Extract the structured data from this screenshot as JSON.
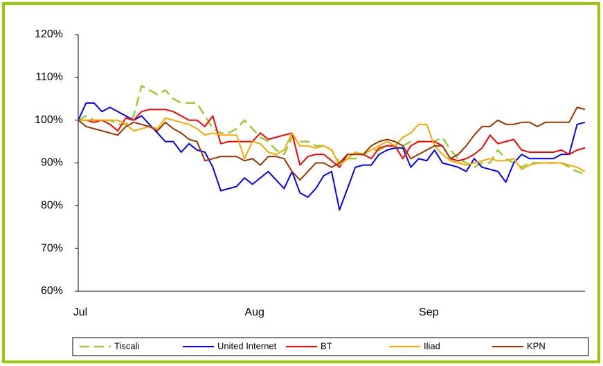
{
  "chart_data": {
    "type": "line",
    "categories": [
      "Jul",
      null,
      null,
      null,
      null,
      null,
      null,
      null,
      null,
      null,
      null,
      null,
      null,
      null,
      null,
      null,
      null,
      null,
      null,
      null,
      null,
      null,
      "Aug",
      null,
      null,
      null,
      null,
      null,
      null,
      null,
      null,
      null,
      null,
      null,
      null,
      null,
      null,
      null,
      null,
      null,
      null,
      null,
      null,
      null,
      "Sep",
      null,
      null,
      null,
      null,
      null,
      null,
      null,
      null,
      null,
      null,
      null,
      null,
      null,
      null,
      null,
      null,
      null,
      null,
      null,
      null
    ],
    "ylim": [
      60,
      120
    ],
    "yticks": [
      {
        "value": 60,
        "label": "60%"
      },
      {
        "value": 70,
        "label": "70%"
      },
      {
        "value": 80,
        "label": "80%"
      },
      {
        "value": 90,
        "label": "90%"
      },
      {
        "value": 100,
        "label": "100%"
      },
      {
        "value": 110,
        "label": "110%"
      },
      {
        "value": 120,
        "label": "120%"
      }
    ],
    "legend": "bottom",
    "series": [
      {
        "name": "Tiscali",
        "color": "#99cc33",
        "dashed": true,
        "values": [
          100,
          101,
          100,
          100,
          100,
          99,
          99,
          101,
          108,
          107,
          106,
          107,
          105,
          104,
          104,
          104,
          101,
          98,
          97,
          97,
          98,
          100,
          98,
          96,
          95,
          93,
          92,
          96,
          95,
          95,
          94,
          94,
          93,
          90,
          91,
          91,
          92,
          93,
          93,
          94,
          94,
          94,
          95,
          95,
          95,
          95,
          96,
          93,
          91,
          90,
          89,
          90,
          90,
          93,
          91,
          90,
          89,
          90,
          90,
          90,
          90,
          90,
          89,
          88,
          87.5
        ]
      },
      {
        "name": "United Internet",
        "color": "#0000ff",
        "values": [
          100,
          104,
          104,
          102,
          103,
          102,
          101,
          100,
          101,
          99,
          97,
          95,
          95,
          92.5,
          94.5,
          93,
          92.5,
          89,
          83.5,
          84,
          84.5,
          86.5,
          85,
          86.5,
          88,
          86,
          84,
          88,
          83,
          82,
          84,
          87,
          88,
          79,
          84,
          89,
          89.5,
          89.5,
          92,
          93,
          93.5,
          93.5,
          89,
          91,
          90.5,
          93,
          90,
          89.5,
          89,
          88,
          91,
          89,
          88.5,
          88,
          85.5,
          90,
          92,
          91,
          91,
          91,
          91,
          92,
          92,
          99,
          99.5
        ]
      },
      {
        "name": "BT",
        "color": "#ff0000",
        "values": [
          100,
          100,
          99.5,
          100,
          99,
          97.5,
          100.5,
          100,
          102,
          102.5,
          102.5,
          102.5,
          102,
          101,
          100,
          100,
          98.5,
          101,
          94.5,
          95,
          95,
          95,
          95,
          97,
          95.5,
          96,
          96.5,
          97,
          89.5,
          91.5,
          92,
          92,
          90.5,
          89,
          92,
          92,
          92,
          91,
          93.5,
          94,
          94,
          91,
          94,
          95,
          95,
          95,
          94,
          91,
          90.5,
          91,
          92,
          93.5,
          96.5,
          94.5,
          95,
          95.5,
          93,
          92.5,
          92.5,
          92.5,
          92.5,
          93,
          92,
          93,
          93.5
        ]
      },
      {
        "name": "Iliad",
        "color": "#ffa500",
        "values": [
          100,
          100,
          100,
          100,
          100,
          100,
          99,
          97.5,
          98,
          98.5,
          98,
          100.5,
          100,
          99.5,
          99,
          98,
          96.5,
          97,
          96.5,
          96.5,
          96.5,
          91,
          95,
          94.5,
          92.5,
          92,
          93,
          97,
          94,
          94,
          93.5,
          94,
          93,
          89.5,
          91,
          92.5,
          92,
          93,
          94,
          95,
          94,
          96,
          97,
          99,
          99,
          94,
          92,
          90.5,
          90,
          89.5,
          90,
          90.5,
          91,
          90.5,
          90.5,
          91,
          88.5,
          89.5,
          90,
          90,
          90,
          90,
          89.5,
          89,
          88
        ]
      },
      {
        "name": "KPN",
        "color": "#993300",
        "values": [
          100,
          98.5,
          98,
          97.5,
          97,
          96.5,
          98.5,
          99.5,
          99,
          98.5,
          97.5,
          99.5,
          98,
          97,
          95.5,
          95,
          90.5,
          91,
          91.5,
          91.5,
          91.5,
          90.5,
          91,
          89.5,
          91.5,
          91.5,
          91,
          88,
          86,
          88,
          90,
          90,
          89,
          90,
          92,
          92,
          92,
          94,
          95,
          95.5,
          95,
          94,
          91,
          92,
          93,
          94,
          94,
          91,
          92,
          94,
          96.5,
          98.5,
          98.5,
          100,
          99,
          99,
          99.5,
          99.5,
          98.5,
          99.5,
          99.5,
          99.5,
          99.5,
          103,
          102.5
        ]
      }
    ]
  }
}
